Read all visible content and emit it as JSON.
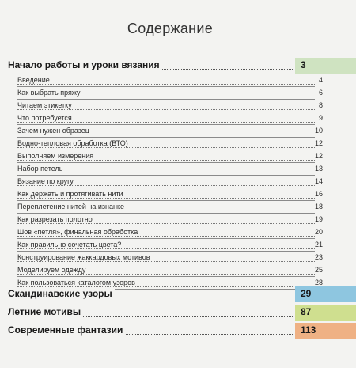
{
  "title": "Содержание",
  "colors": {
    "green": "#cfe3c1",
    "blue": "#8ec6e0",
    "lime": "#cfdf8f",
    "orange": "#efb184"
  },
  "sections": [
    {
      "label": "Начало работы и уроки вязания",
      "page": "3",
      "color": "#cfe3c1",
      "items": [
        {
          "label": "Введение",
          "page": "4"
        },
        {
          "label": "Как выбрать пряжу",
          "page": "6"
        },
        {
          "label": "Читаем этикетку",
          "page": "8"
        },
        {
          "label": "Что потребуется",
          "page": "9"
        },
        {
          "label": "Зачем нужен образец",
          "page": "10"
        },
        {
          "label": "Водно-тепловая обработка (ВТО)",
          "page": "12"
        },
        {
          "label": "Выполняем измерения",
          "page": "12"
        },
        {
          "label": "Набор петель",
          "page": "13"
        },
        {
          "label": "Вязание по кругу",
          "page": "14"
        },
        {
          "label": "Как держать и протягивать нити",
          "page": "16"
        },
        {
          "label": "Переплетение нитей на изнанке",
          "page": "18"
        },
        {
          "label": "Как разрезать полотно",
          "page": "19"
        },
        {
          "label": "Шов «петля», финальная обработка",
          "page": "20"
        },
        {
          "label": "Как правильно сочетать цвета?",
          "page": "21"
        },
        {
          "label": "Конструирование жаккардовых мотивов",
          "page": "23"
        },
        {
          "label": "Моделируем одежду",
          "page": "25"
        },
        {
          "label": "Как пользоваться каталогом узоров",
          "page": "28"
        }
      ]
    },
    {
      "label": "Скандинавские узоры",
      "page": "29",
      "color": "#8ec6e0",
      "items": []
    },
    {
      "label": "Летние мотивы",
      "page": "87",
      "color": "#cfdf8f",
      "items": []
    },
    {
      "label": "Современные фантазии",
      "page": "113",
      "color": "#efb184",
      "items": []
    }
  ]
}
